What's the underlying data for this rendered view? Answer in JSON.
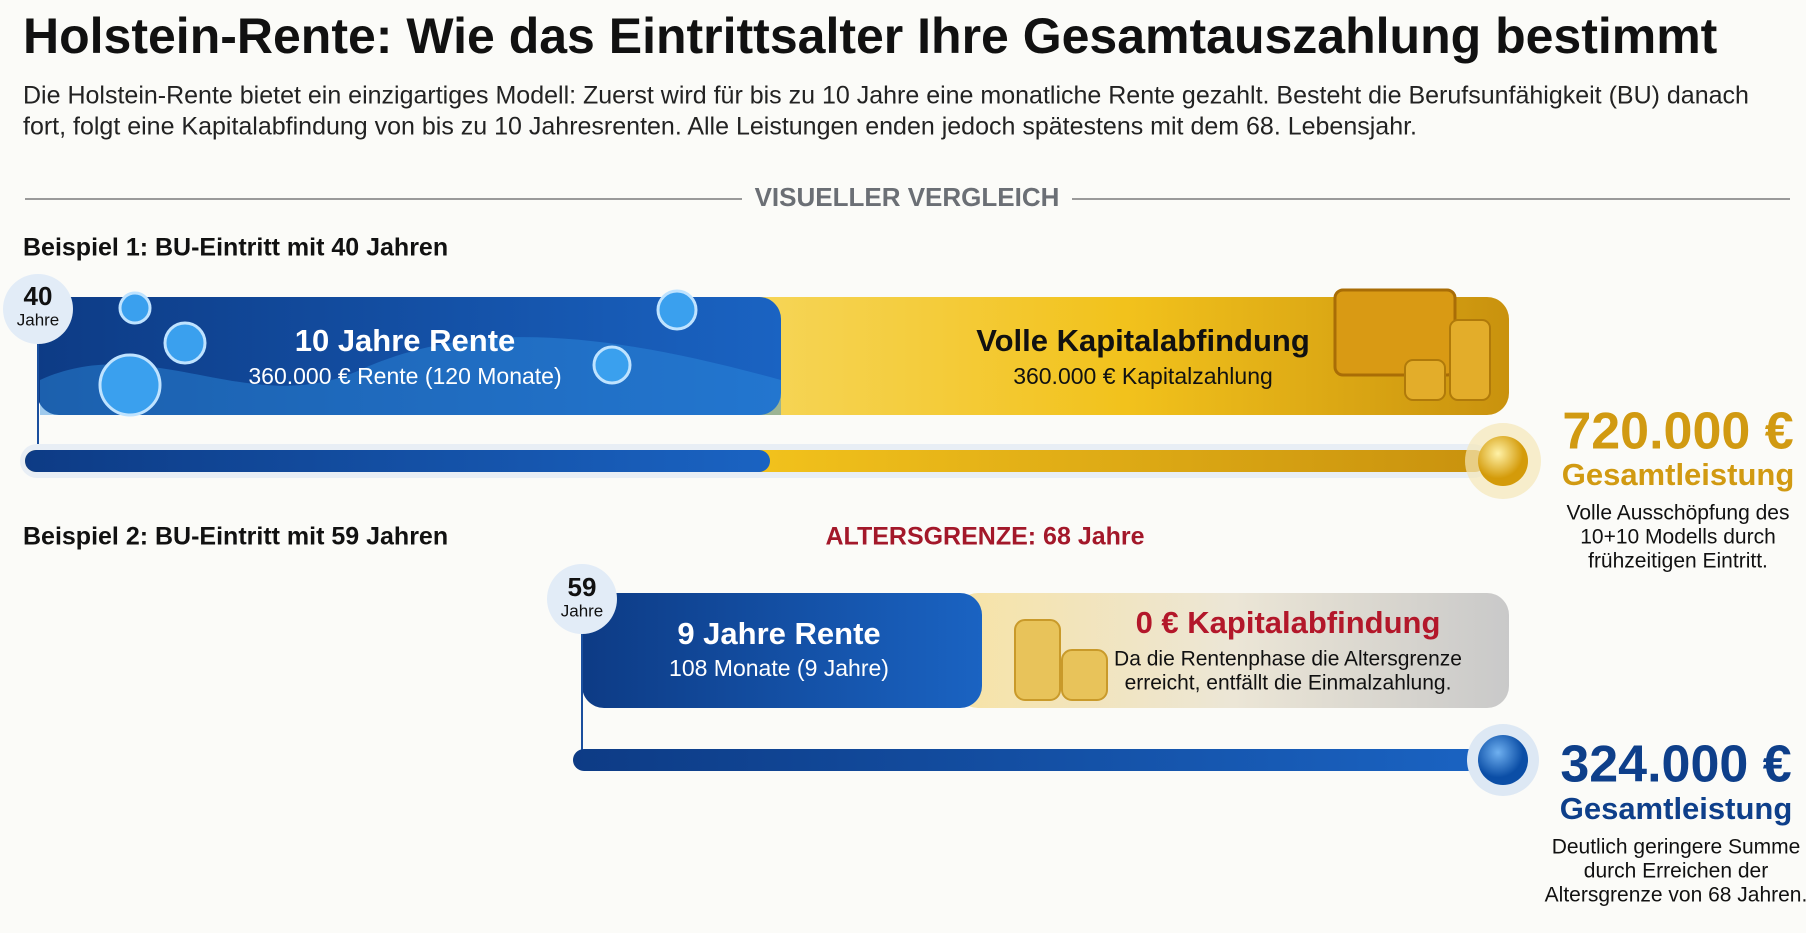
{
  "header": {
    "title": "Holstein-Rente: Wie das Eintrittsalter Ihre Gesamtauszahlung bestimmt",
    "intro": [
      "Die Holstein-Rente bietet ein einzigartiges Modell: Zuerst wird für bis zu 10 Jahre eine monatliche Rente gezahlt. Besteht die Berufsunfähigkeit (BU) danach",
      "fort, folgt eine Kapitalabfindung von bis zu 10 Jahresrenten. Alle Leistungen enden jedoch spätestens mit dem 68. Lebensjahr."
    ]
  },
  "divider": "VISUELLER VERGLEICH",
  "examples": [
    {
      "label": "Beispiel 1: BU-Eintritt mit 40 Jahren",
      "age": "40",
      "age_unit": "Jahre",
      "rent": {
        "title": "10 Jahre Rente",
        "detail": "360.000 € Rente (120 Monate)"
      },
      "capital": {
        "title": "Volle Kapitalabfindung",
        "detail": [
          "360.000 € Kapitalzahlung"
        ]
      },
      "total": "720.000 €",
      "total_label": "Gesamtleistung",
      "note": [
        "Volle Ausschöpfung des",
        "10+10 Modells durch",
        "frühzeitigen Eintritt."
      ]
    },
    {
      "label": "Beispiel 2: BU-Eintritt mit 59 Jahren",
      "age": "59",
      "age_unit": "Jahre",
      "rent": {
        "title": "9 Jahre Rente",
        "detail": "108 Monate (9 Jahre)"
      },
      "capital": {
        "title": "0 € Kapitalabfindung",
        "detail": [
          "Da die Rentenphase die Altersgrenze",
          "erreicht, entfällt die Einmalzahlung."
        ]
      },
      "total": "324.000 €",
      "total_label": "Gesamtleistung",
      "note": [
        "Deutlich geringere Summe",
        "durch Erreichen der",
        "Altersgrenze von 68 Jahren."
      ]
    }
  ],
  "age_limit": "ALTERSGRENZE: 68 Jahre"
}
